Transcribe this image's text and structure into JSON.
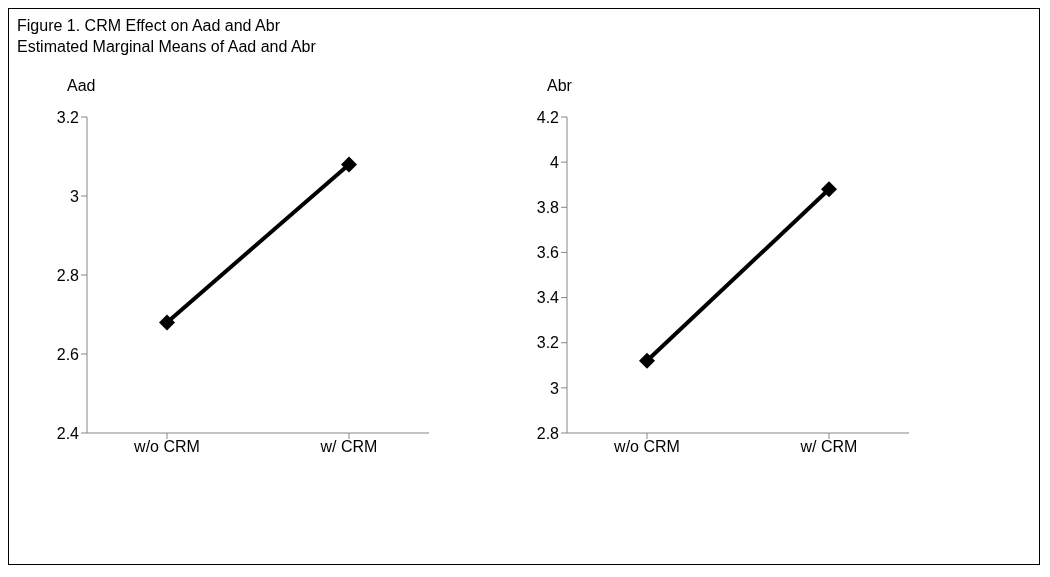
{
  "chart_data": [
    {
      "type": "line",
      "title": "Figure 1. CRM Effect on Aad and Abr",
      "subtitle": "Estimated Marginal Means of Aad and Abr",
      "ylabel": "Aad",
      "categories": [
        "w/o CRM",
        "w/ CRM"
      ],
      "series": [
        {
          "color": "#000000",
          "values": [
            2.68,
            3.08
          ]
        }
      ],
      "ylim": [
        2.4,
        3.2
      ],
      "yticks": [
        2.4,
        2.6,
        2.8,
        3,
        3.2
      ],
      "marker": "diamond",
      "line_style": "solid"
    },
    {
      "type": "line",
      "ylabel": "Abr",
      "categories": [
        "w/o CRM",
        "w/ CRM"
      ],
      "series": [
        {
          "color": "#000000",
          "values": [
            3.12,
            3.88
          ]
        }
      ],
      "ylim": [
        2.8,
        4.2
      ],
      "yticks": [
        2.8,
        3,
        3.2,
        3.4,
        3.6,
        3.8,
        4,
        4.2
      ],
      "marker": "diamond",
      "line_style": "solid"
    }
  ]
}
